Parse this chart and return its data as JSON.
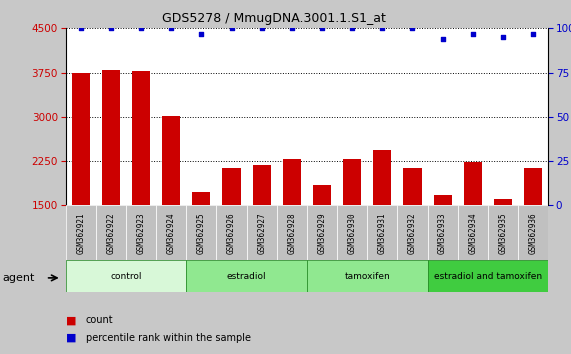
{
  "title": "GDS5278 / MmugDNA.3001.1.S1_at",
  "samples": [
    "GSM362921",
    "GSM362922",
    "GSM362923",
    "GSM362924",
    "GSM362925",
    "GSM362926",
    "GSM362927",
    "GSM362928",
    "GSM362929",
    "GSM362930",
    "GSM362931",
    "GSM362932",
    "GSM362933",
    "GSM362934",
    "GSM362935",
    "GSM362936"
  ],
  "counts": [
    3750,
    3800,
    3780,
    3020,
    1730,
    2130,
    2180,
    2290,
    1840,
    2280,
    2440,
    2140,
    1680,
    2230,
    1600,
    2130
  ],
  "percentile_ranks": [
    100,
    100,
    100,
    100,
    97,
    100,
    100,
    100,
    100,
    100,
    100,
    100,
    94,
    97,
    95,
    97
  ],
  "ylim_left": [
    1500,
    4500
  ],
  "ylim_right": [
    0,
    100
  ],
  "yticks_left": [
    1500,
    2250,
    3000,
    3750,
    4500
  ],
  "yticks_right": [
    0,
    25,
    50,
    75,
    100
  ],
  "bar_color": "#cc0000",
  "dot_color": "#0000cc",
  "figure_bg_color": "#c8c8c8",
  "plot_bg_color": "#ffffff",
  "xticklabel_bg": "#c0c0c0",
  "groups": [
    {
      "label": "control",
      "start": 0,
      "end": 3,
      "color": "#d0f5d0"
    },
    {
      "label": "estradiol",
      "start": 4,
      "end": 7,
      "color": "#90e890"
    },
    {
      "label": "tamoxifen",
      "start": 8,
      "end": 11,
      "color": "#90e890"
    },
    {
      "label": "estradiol and tamoxifen",
      "start": 12,
      "end": 15,
      "color": "#40cc40"
    }
  ],
  "legend_count_color": "#cc0000",
  "legend_dot_color": "#0000cc",
  "xlabel_agent": "agent",
  "tick_label_color_left": "#cc0000",
  "tick_label_color_right": "#0000cc"
}
